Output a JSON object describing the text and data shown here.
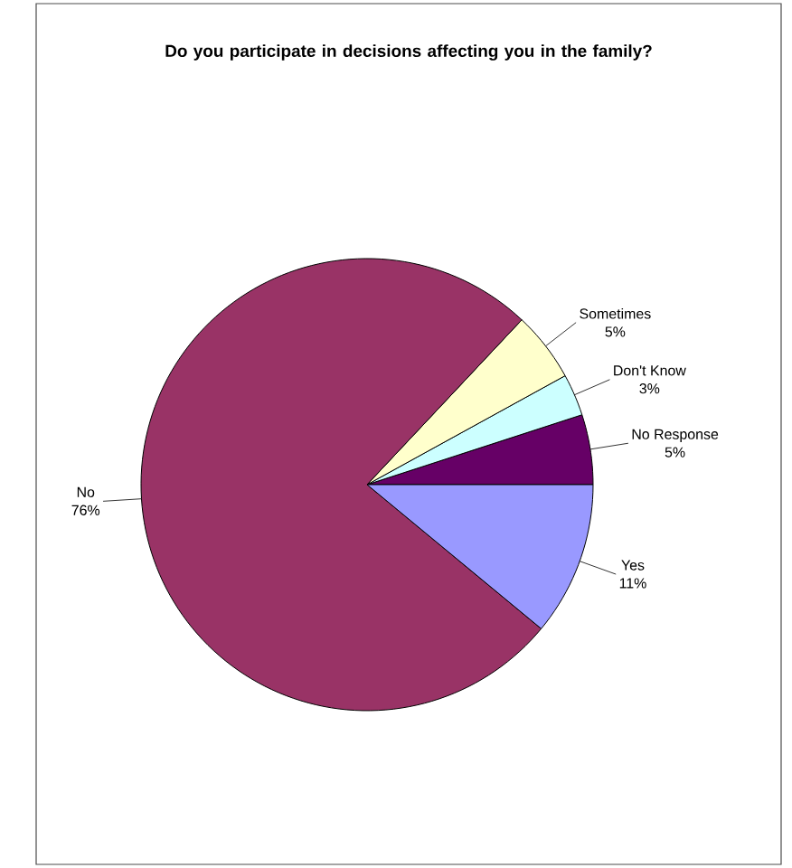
{
  "chart_data": {
    "type": "pie",
    "title": "Do you participate in decisions affecting you in the family?",
    "categories": [
      "No Response",
      "Don't Know",
      "Sometimes",
      "No",
      "Yes"
    ],
    "values": [
      5,
      3,
      5,
      76,
      11
    ],
    "value_labels": [
      "5%",
      "3%",
      "5%",
      "76%",
      "11%"
    ],
    "colors": [
      "#660066",
      "#ccffff",
      "#ffffcc",
      "#993366",
      "#9999ff"
    ]
  }
}
